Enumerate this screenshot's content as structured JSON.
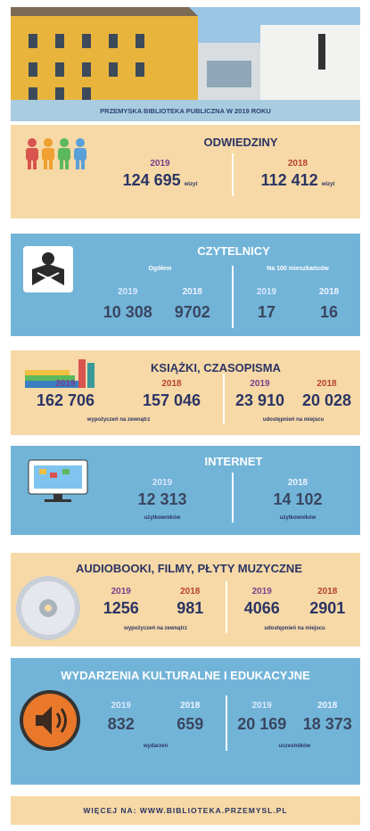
{
  "header": {
    "title": "PRZEMYSKA BIBLIOTEKA PUBLICZNA W 2019 ROKU"
  },
  "sections": [
    {
      "title": "ODWIEDZINY",
      "groups": [
        {
          "stats": [
            {
              "year": "2019",
              "value": "124 695",
              "unit": "wizyt"
            }
          ]
        },
        {
          "stats": [
            {
              "year": "2018",
              "value": "112 412",
              "unit": "wizyt"
            }
          ]
        }
      ]
    },
    {
      "title": "CZYTELNICY",
      "groups": [
        {
          "label": "Ogółem",
          "stats": [
            {
              "year": "2019",
              "value": "10 308"
            },
            {
              "year": "2018",
              "value": "9702"
            }
          ]
        },
        {
          "label": "Na 100 mieszkańców",
          "stats": [
            {
              "year": "2019",
              "value": "17"
            },
            {
              "year": "2018",
              "value": "16"
            }
          ]
        }
      ]
    },
    {
      "title": "KSIĄŻKI, CZASOPISMA",
      "groups": [
        {
          "stats": [
            {
              "year": "2019",
              "value": "162 706"
            },
            {
              "year": "2018",
              "value": "157 046"
            }
          ],
          "note": "wypożyczeń na zewnątrz"
        },
        {
          "stats": [
            {
              "year": "2019",
              "value": "23 910"
            },
            {
              "year": "2018",
              "value": "20 028"
            }
          ],
          "note": "udostępnień na miejscu"
        }
      ]
    },
    {
      "title": "INTERNET",
      "groups": [
        {
          "stats": [
            {
              "year": "2019",
              "value": "12 313"
            }
          ],
          "note": "użytkowników"
        },
        {
          "stats": [
            {
              "year": "2018",
              "value": "14 102"
            }
          ],
          "note": "użytkowników"
        }
      ]
    },
    {
      "title": "AUDIOBOOKI, FILMY, PŁYTY MUZYCZNE",
      "groups": [
        {
          "stats": [
            {
              "year": "2019",
              "value": "1256"
            },
            {
              "year": "2018",
              "value": "981"
            }
          ],
          "note": "wypożyczeń na zewnątrz"
        },
        {
          "stats": [
            {
              "year": "2019",
              "value": "4066"
            },
            {
              "year": "2018",
              "value": "2901"
            }
          ],
          "note": "udostępnień na miejscu"
        }
      ]
    },
    {
      "title": "WYDARZENIA KULTURALNE I EDUKACYJNE",
      "groups": [
        {
          "stats": [
            {
              "year": "2019",
              "value": "832"
            },
            {
              "year": "2018",
              "value": "659"
            }
          ],
          "note": "wydarzeń"
        },
        {
          "stats": [
            {
              "year": "2019",
              "value": "20 169"
            },
            {
              "year": "2018",
              "value": "18 373"
            }
          ],
          "note": "uczestników"
        }
      ]
    }
  ],
  "footer": {
    "text": "WIĘCEJ NA: WWW.BIBLIOTEKA.PRZEMYSL.PL"
  }
}
